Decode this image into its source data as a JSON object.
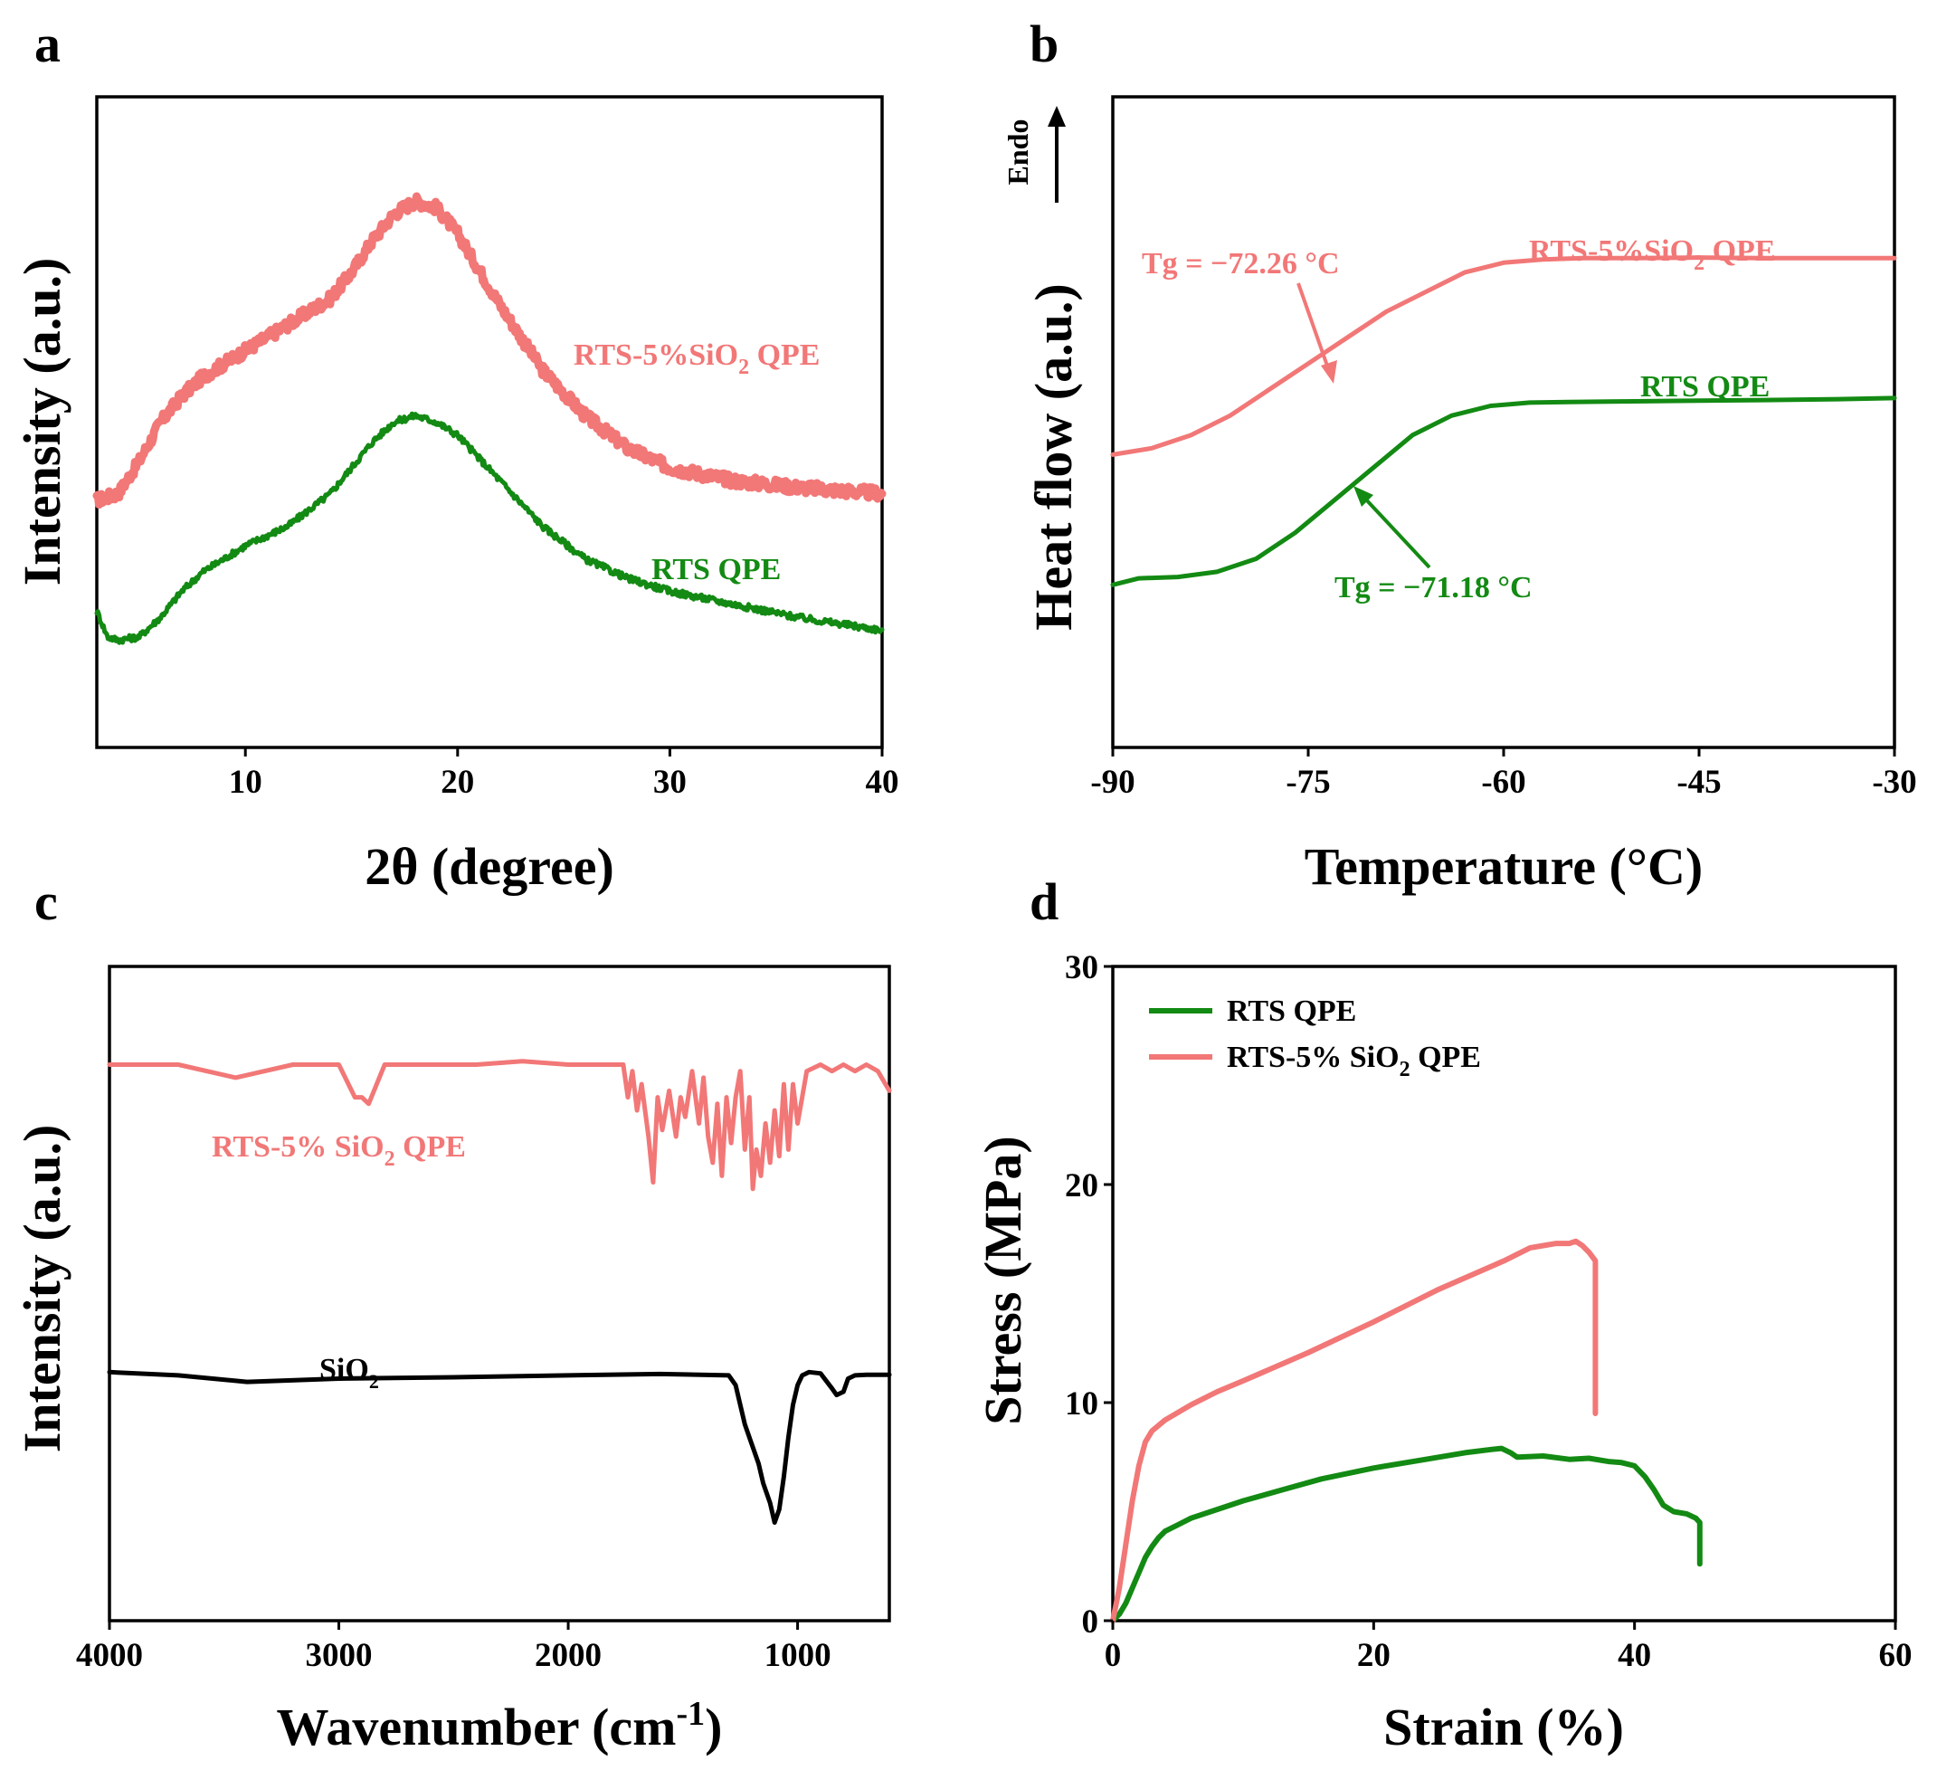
{
  "colors": {
    "salmon": "#F27777",
    "green": "#138A13",
    "black": "#000000"
  },
  "chart_data": [
    {
      "panel": "a",
      "type": "line",
      "xlabel": "2θ (degree)",
      "ylabel": "Intensity (a.u.)",
      "xlim": [
        3,
        40
      ],
      "ylim": [
        0,
        1
      ],
      "xticks": [
        10,
        20,
        30,
        40
      ],
      "yticks_shown": false,
      "series": [
        {
          "name": "RTS-5%SiO₂ QPE",
          "color": "#F27777",
          "stroke": 9,
          "noise": 0.009,
          "x": [
            3,
            4,
            5,
            6,
            7,
            8,
            10,
            12,
            14,
            15,
            16,
            17,
            18,
            19,
            20,
            22,
            24,
            26,
            28,
            30,
            33,
            36,
            40
          ],
          "y": [
            0.38,
            0.39,
            0.44,
            0.5,
            0.54,
            0.57,
            0.61,
            0.65,
            0.69,
            0.73,
            0.78,
            0.82,
            0.84,
            0.83,
            0.79,
            0.68,
            0.58,
            0.51,
            0.46,
            0.43,
            0.41,
            0.4,
            0.39
          ]
        },
        {
          "name": "RTS QPE",
          "color": "#138A13",
          "stroke": 5,
          "noise": 0.005,
          "x": [
            3,
            3.5,
            4,
            5,
            6,
            7,
            8,
            10,
            12,
            14,
            15,
            16,
            17,
            18,
            19,
            20,
            22,
            24,
            26,
            28,
            30,
            33,
            36,
            40
          ],
          "y": [
            0.21,
            0.17,
            0.165,
            0.17,
            0.2,
            0.24,
            0.27,
            0.31,
            0.34,
            0.39,
            0.43,
            0.47,
            0.5,
            0.51,
            0.5,
            0.48,
            0.41,
            0.34,
            0.29,
            0.26,
            0.24,
            0.22,
            0.2,
            0.18
          ]
        }
      ],
      "annotations": [
        {
          "text": "RTS-5%SiO",
          "sub": "2",
          "after": " QPE",
          "color": "#F27777"
        },
        {
          "text": "RTS QPE",
          "sub": "",
          "after": "",
          "color": "#138A13"
        }
      ]
    },
    {
      "panel": "b",
      "type": "line",
      "xlabel": "Temperature (°C)",
      "ylabel": "Heat flow (a.u.)",
      "ylabel_extra": "Endo",
      "xlim": [
        -90,
        -30
      ],
      "ylim": [
        0,
        1
      ],
      "xticks": [
        -90,
        -75,
        -60,
        -45,
        -30
      ],
      "yticks_shown": false,
      "series": [
        {
          "name": "RTS-5%SiO₂ QPE",
          "color": "#F27777",
          "stroke": 5,
          "noise": 0,
          "x": [
            -90,
            -87,
            -84,
            -81,
            -78,
            -75,
            -72,
            -69,
            -66,
            -63,
            -60,
            -57,
            -54,
            -50,
            -45,
            -40,
            -35,
            -30
          ],
          "y": [
            0.45,
            0.46,
            0.48,
            0.51,
            0.55,
            0.59,
            0.63,
            0.67,
            0.7,
            0.73,
            0.745,
            0.75,
            0.752,
            0.752,
            0.753,
            0.752,
            0.752,
            0.752
          ]
        },
        {
          "name": "RTS QPE",
          "color": "#138A13",
          "stroke": 5,
          "noise": 0,
          "x": [
            -90,
            -88,
            -85,
            -82,
            -79,
            -76,
            -73,
            -70,
            -67,
            -64,
            -61,
            -58,
            -55,
            -50,
            -45,
            -40,
            -35,
            -30
          ],
          "y": [
            0.25,
            0.26,
            0.262,
            0.27,
            0.29,
            0.33,
            0.38,
            0.43,
            0.48,
            0.51,
            0.525,
            0.53,
            0.531,
            0.532,
            0.533,
            0.534,
            0.535,
            0.537
          ]
        }
      ],
      "annotations": [
        {
          "text": "Tg = −72.26 °C",
          "color": "#F27777",
          "arrow_to": [
            -73.5,
            0.615
          ]
        },
        {
          "text": "RTS-5%SiO",
          "sub": "2",
          "after": " QPE",
          "color": "#F27777"
        },
        {
          "text": "RTS QPE",
          "sub": "",
          "after": "",
          "color": "#138A13"
        },
        {
          "text": "Tg = −71.18 °C",
          "color": "#138A13",
          "arrow_to": [
            -73.5,
            0.36
          ]
        }
      ]
    },
    {
      "panel": "c",
      "type": "line",
      "xlabel": "Wavenumber (cm⁻¹)",
      "ylabel": "Intensity (a.u.)",
      "xlim": [
        4000,
        600
      ],
      "x_reversed": true,
      "ylim": [
        0,
        1
      ],
      "xticks": [
        4000,
        3000,
        2000,
        1000
      ],
      "yticks_shown": false,
      "series": [
        {
          "name": "RTS-5% SiO₂ QPE",
          "color": "#F27777",
          "stroke": 5,
          "noise": 0,
          "x": [
            4000,
            3700,
            3450,
            3200,
            3000,
            2930,
            2900,
            2870,
            2800,
            2600,
            2400,
            2200,
            2000,
            1760,
            1740,
            1720,
            1700,
            1680,
            1650,
            1630,
            1610,
            1590,
            1560,
            1530,
            1510,
            1490,
            1460,
            1430,
            1410,
            1390,
            1370,
            1350,
            1330,
            1310,
            1290,
            1270,
            1250,
            1230,
            1210,
            1195,
            1180,
            1160,
            1140,
            1120,
            1100,
            1080,
            1060,
            1040,
            1020,
            1000,
            960,
            900,
            850,
            800,
            750,
            700,
            650,
            600
          ],
          "y": [
            0.85,
            0.85,
            0.83,
            0.85,
            0.85,
            0.8,
            0.8,
            0.79,
            0.85,
            0.85,
            0.85,
            0.855,
            0.85,
            0.85,
            0.8,
            0.84,
            0.78,
            0.82,
            0.74,
            0.67,
            0.8,
            0.75,
            0.81,
            0.74,
            0.8,
            0.77,
            0.84,
            0.76,
            0.83,
            0.74,
            0.7,
            0.79,
            0.68,
            0.8,
            0.73,
            0.8,
            0.84,
            0.72,
            0.8,
            0.66,
            0.72,
            0.68,
            0.76,
            0.7,
            0.78,
            0.71,
            0.82,
            0.72,
            0.82,
            0.76,
            0.84,
            0.85,
            0.84,
            0.85,
            0.84,
            0.85,
            0.84,
            0.81
          ]
        },
        {
          "name": "SiO₂",
          "color": "#000000",
          "stroke": 5,
          "noise": 0,
          "x": [
            4000,
            3700,
            3400,
            3000,
            2500,
            2000,
            1600,
            1300,
            1270,
            1250,
            1230,
            1200,
            1170,
            1150,
            1120,
            1100,
            1080,
            1060,
            1040,
            1020,
            1000,
            980,
            950,
            900,
            850,
            830,
            800,
            780,
            750,
            700,
            650,
            600
          ],
          "y": [
            0.38,
            0.375,
            0.365,
            0.37,
            0.372,
            0.375,
            0.377,
            0.375,
            0.36,
            0.33,
            0.3,
            0.27,
            0.24,
            0.21,
            0.18,
            0.15,
            0.17,
            0.22,
            0.28,
            0.33,
            0.36,
            0.375,
            0.38,
            0.378,
            0.355,
            0.345,
            0.35,
            0.37,
            0.375,
            0.376,
            0.376,
            0.376
          ]
        }
      ],
      "annotations": [
        {
          "text": "RTS-5% SiO",
          "sub": "2",
          "after": " QPE",
          "color": "#F27777"
        },
        {
          "text": "SiO",
          "sub": "2",
          "after": "",
          "color": "#000000"
        }
      ]
    },
    {
      "panel": "d",
      "type": "line",
      "xlabel": "Strain (%)",
      "ylabel": "Stress (MPa)",
      "xlim": [
        0,
        60
      ],
      "ylim": [
        0,
        30
      ],
      "xticks": [
        0,
        20,
        40,
        60
      ],
      "yticks": [
        0,
        10,
        20,
        30
      ],
      "legend_position": "top-left",
      "series": [
        {
          "name": "RTS QPE",
          "color": "#138A13",
          "stroke": 6,
          "noise": 0,
          "x": [
            0,
            0.5,
            1,
            1.5,
            2,
            2.5,
            3,
            3.5,
            4,
            5,
            6,
            8,
            10,
            13,
            16,
            20,
            24,
            27,
            29,
            29.8,
            30.5,
            31,
            33,
            35,
            36.5,
            38,
            39,
            40,
            40.8,
            41.5,
            42.2,
            43,
            44,
            44.7,
            45,
            45,
            45
          ],
          "y": [
            0,
            0.3,
            0.8,
            1.5,
            2.2,
            2.9,
            3.4,
            3.8,
            4.1,
            4.4,
            4.7,
            5.1,
            5.5,
            6,
            6.5,
            7,
            7.4,
            7.7,
            7.85,
            7.9,
            7.7,
            7.5,
            7.55,
            7.4,
            7.45,
            7.3,
            7.25,
            7.1,
            6.6,
            6.0,
            5.3,
            5.0,
            4.9,
            4.7,
            4.5,
            3.5,
            2.6
          ]
        },
        {
          "name": "RTS-5% SiO₂ QPE",
          "color": "#F27777",
          "stroke": 6,
          "noise": 0,
          "x": [
            0,
            0.5,
            1,
            1.5,
            2,
            2.5,
            3,
            4,
            6,
            8,
            10,
            15,
            20,
            25,
            30,
            32,
            33,
            34,
            35,
            35.5,
            36,
            36.5,
            37,
            37,
            37
          ],
          "y": [
            0,
            1.5,
            3.5,
            5.5,
            7.1,
            8.2,
            8.7,
            9.2,
            9.9,
            10.5,
            11.0,
            12.3,
            13.7,
            15.2,
            16.5,
            17.1,
            17.2,
            17.3,
            17.3,
            17.4,
            17.2,
            16.9,
            16.5,
            12.5,
            9.5
          ]
        }
      ],
      "legend": [
        {
          "label": "RTS QPE",
          "sub": "",
          "after": "",
          "color": "#138A13"
        },
        {
          "label": "RTS-5% SiO",
          "sub": "2",
          "after": " QPE",
          "color": "#F27777"
        }
      ]
    }
  ]
}
